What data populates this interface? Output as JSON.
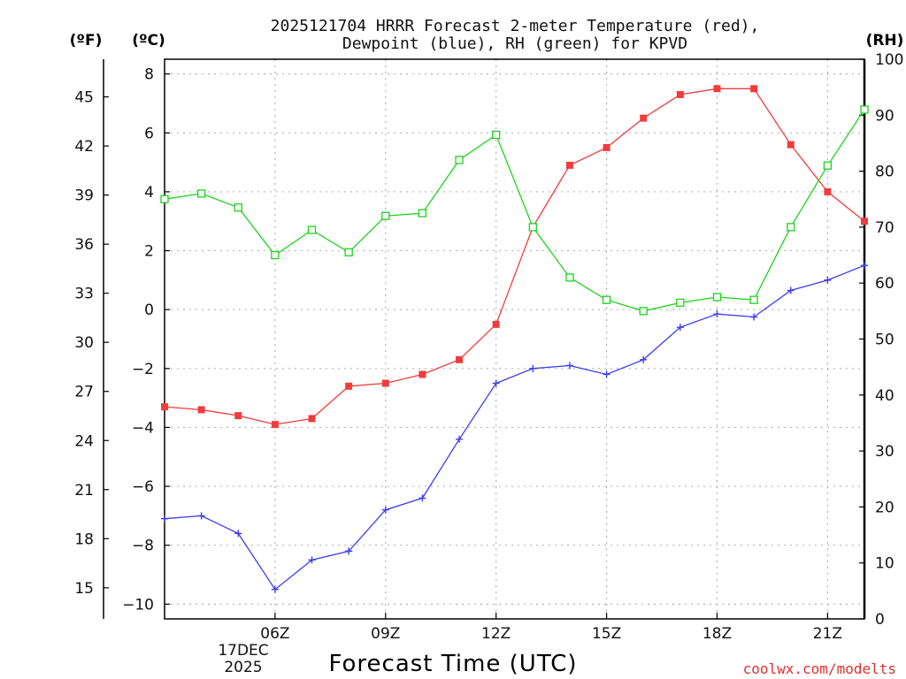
{
  "chart_data": {
    "type": "line",
    "title_lines": [
      "2025121704 HRRR Forecast 2-meter Temperature (red),",
      "Dewpoint (blue), RH (green) for KPVD"
    ],
    "xlabel": "Forecast Time (UTC)",
    "credit": "coolwx.com/modelts",
    "left_outer_unit": "(ºF)",
    "left_unit": "(ºC)",
    "right_unit": "(RH)",
    "x_hours": [
      3,
      4,
      5,
      6,
      7,
      8,
      9,
      10,
      11,
      12,
      13,
      14,
      15,
      16,
      17,
      18,
      19,
      20,
      21,
      22
    ],
    "xlim": [
      3,
      22
    ],
    "x_ticks": [
      {
        "hour": 6,
        "label": "06Z"
      },
      {
        "hour": 9,
        "label": "09Z"
      },
      {
        "hour": 12,
        "label": "12Z"
      },
      {
        "hour": 15,
        "label": "15Z"
      },
      {
        "hour": 18,
        "label": "18Z"
      },
      {
        "hour": 21,
        "label": "21Z"
      }
    ],
    "date_label_lines": [
      "17DEC",
      "2025"
    ],
    "celsius_axis": {
      "range": [
        -10.5,
        8.5
      ],
      "ticks": [
        8,
        6,
        4,
        2,
        0,
        -2,
        -4,
        -6,
        -8,
        -10
      ]
    },
    "fahrenheit_axis": {
      "ticks": [
        45,
        42,
        39,
        36,
        33,
        30,
        27,
        24,
        21,
        18,
        15
      ]
    },
    "rh_axis": {
      "range": [
        0,
        100
      ],
      "ticks": [
        100,
        90,
        80,
        70,
        60,
        50,
        40,
        30,
        20,
        10,
        0
      ]
    },
    "series": [
      {
        "name": "Temperature",
        "axis": "celsius",
        "color": "#f03c3c",
        "marker": "filled-square",
        "values": [
          -3.3,
          -3.4,
          -3.6,
          -3.9,
          -3.7,
          -2.6,
          -2.5,
          -2.2,
          -1.7,
          -0.5,
          2.8,
          4.9,
          5.5,
          6.5,
          7.3,
          7.5,
          7.5,
          5.6,
          4.0,
          3.0
        ]
      },
      {
        "name": "Dewpoint",
        "axis": "celsius",
        "color": "#3c3cf0",
        "marker": "plus",
        "values": [
          -7.1,
          -7.0,
          -7.6,
          -9.5,
          -8.5,
          -8.2,
          -6.8,
          -6.4,
          -4.4,
          -2.5,
          -2.0,
          -1.9,
          -2.2,
          -1.7,
          -0.6,
          -0.15,
          -0.25,
          0.65,
          1.0,
          1.5
        ]
      },
      {
        "name": "RH",
        "axis": "rh",
        "color": "#1ed21e",
        "marker": "open-square",
        "values": [
          75,
          76,
          73.5,
          65,
          69.5,
          65.5,
          72,
          72.5,
          82,
          86.5,
          70,
          61,
          57,
          55,
          56.5,
          57.5,
          57,
          70,
          81,
          91
        ]
      }
    ]
  }
}
